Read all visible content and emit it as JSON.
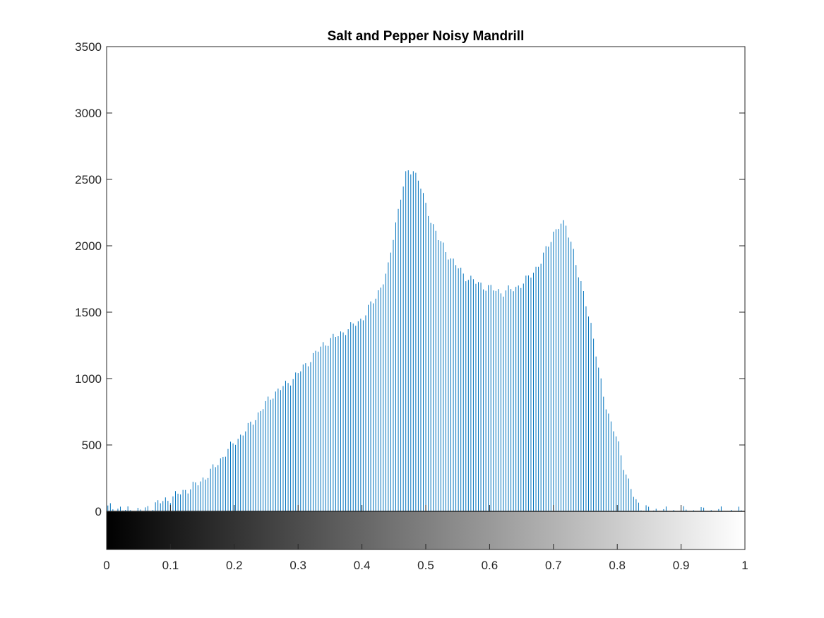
{
  "chart_data": {
    "type": "bar",
    "title": "Salt and Pepper Noisy Mandrill",
    "xlabel": "",
    "ylabel": "",
    "xlim": [
      0,
      1
    ],
    "ylim": [
      0,
      3500
    ],
    "x_ticks": [
      "0",
      "0.1",
      "0.2",
      "0.3",
      "0.4",
      "0.5",
      "0.6",
      "0.7",
      "0.8",
      "0.9",
      "1"
    ],
    "y_ticks": [
      "0",
      "500",
      "1000",
      "1500",
      "2000",
      "2500",
      "3000",
      "3500"
    ],
    "grid": false,
    "legend": "none",
    "colorbar": "grayscale gradient below x-axis, black (0) to white (1)",
    "bar_color": "#0072BD",
    "bin_width": 0.003922,
    "x_anchors": [
      0,
      0.02,
      0.04,
      0.06,
      0.08,
      0.1,
      0.12,
      0.14,
      0.16,
      0.18,
      0.2,
      0.22,
      0.24,
      0.26,
      0.28,
      0.3,
      0.32,
      0.34,
      0.36,
      0.38,
      0.4,
      0.42,
      0.44,
      0.45,
      0.46,
      0.47,
      0.48,
      0.49,
      0.5,
      0.52,
      0.54,
      0.56,
      0.58,
      0.6,
      0.62,
      0.64,
      0.66,
      0.68,
      0.69,
      0.7,
      0.71,
      0.72,
      0.73,
      0.74,
      0.75,
      0.76,
      0.77,
      0.78,
      0.79,
      0.8,
      0.81,
      0.82,
      0.83,
      0.84,
      0.85,
      0.86,
      0.88,
      0.9,
      1.0
    ],
    "y_anchors": [
      30,
      20,
      0,
      10,
      60,
      100,
      150,
      200,
      280,
      400,
      520,
      620,
      750,
      880,
      950,
      1040,
      1150,
      1260,
      1320,
      1380,
      1450,
      1600,
      1800,
      2100,
      2350,
      2550,
      2580,
      2480,
      2300,
      2050,
      1900,
      1780,
      1720,
      1680,
      1650,
      1680,
      1750,
      1880,
      1980,
      2100,
      2160,
      2150,
      2000,
      1750,
      1600,
      1380,
      1080,
      850,
      660,
      540,
      350,
      180,
      70,
      30,
      10,
      5,
      0,
      0,
      0
    ]
  }
}
